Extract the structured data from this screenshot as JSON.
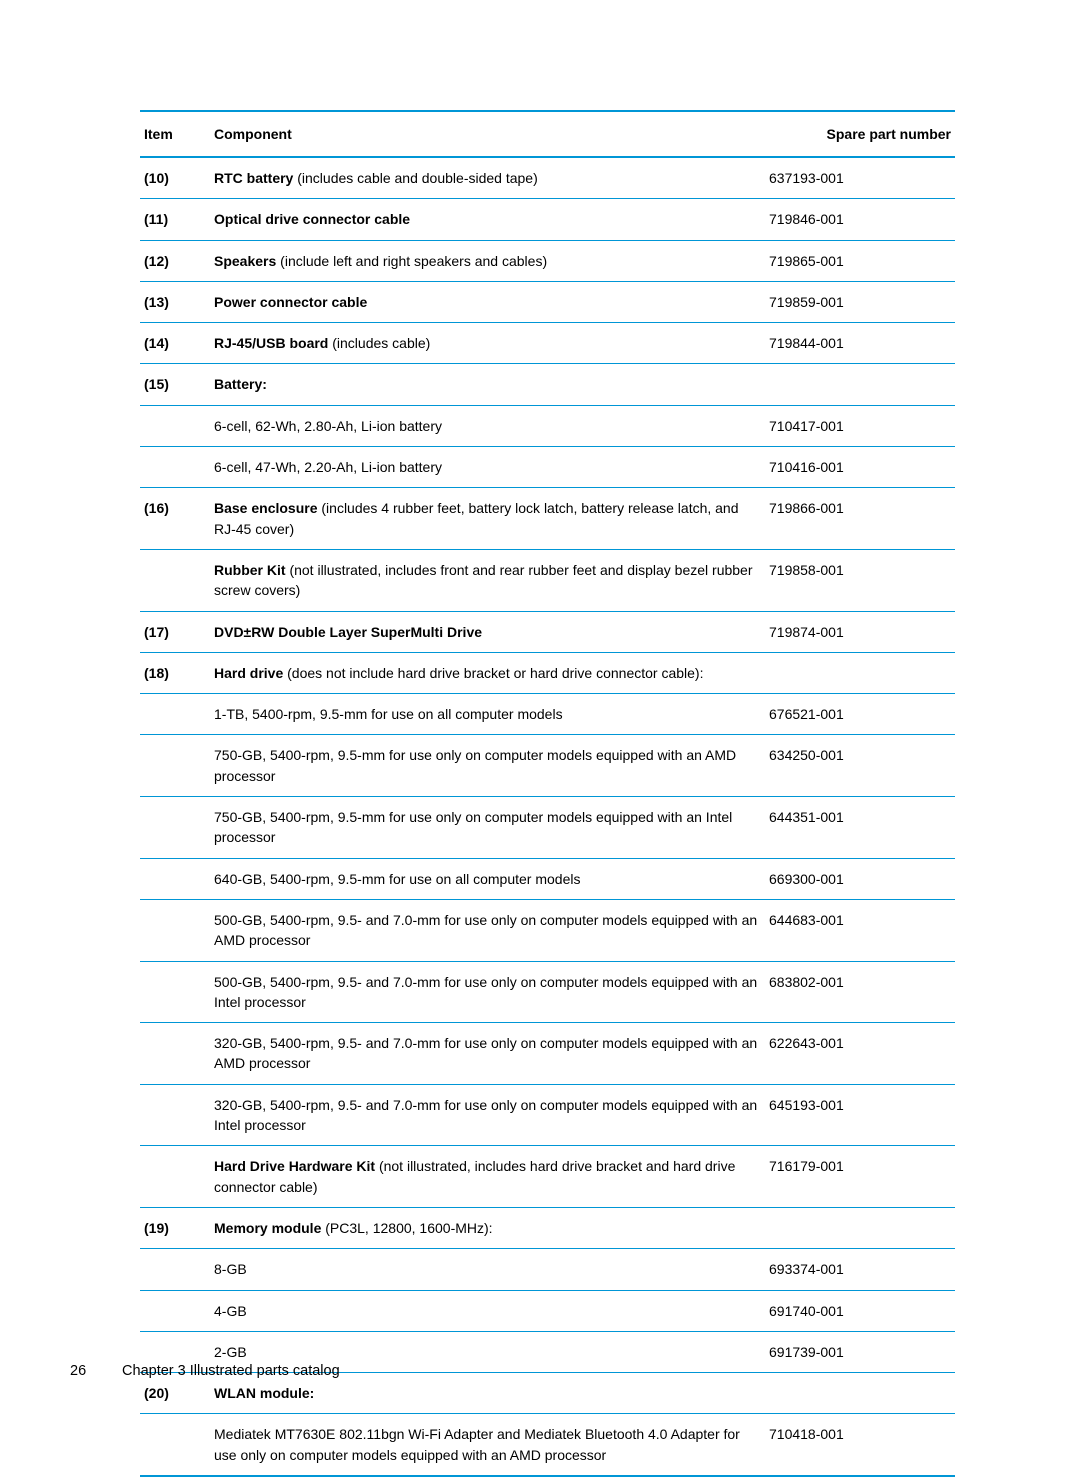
{
  "accent_color": "#0096d6",
  "text_color": "#000000",
  "background_color": "#ffffff",
  "font_family": "Arial, Helvetica, sans-serif",
  "base_font_size_pt": 10.5,
  "headers": {
    "item": "Item",
    "component": "Component",
    "spare_part": "Spare part number"
  },
  "rows": [
    {
      "item": "(10)",
      "bold": "RTC battery",
      "rest": " (includes cable and double-sided tape)",
      "part": "637193-001"
    },
    {
      "item": "(11)",
      "bold": "Optical drive connector cable",
      "rest": "",
      "part": "719846-001"
    },
    {
      "item": "(12)",
      "bold": "Speakers",
      "rest": " (include left and right speakers and cables)",
      "part": "719865-001"
    },
    {
      "item": "(13)",
      "bold": "Power connector cable",
      "rest": "",
      "part": "719859-001"
    },
    {
      "item": "(14)",
      "bold": "RJ-45/USB board",
      "rest": " (includes cable)",
      "part": "719844-001"
    },
    {
      "item": "(15)",
      "bold": "Battery:",
      "rest": "",
      "part": ""
    },
    {
      "item": "",
      "bold": "",
      "rest": "6-cell, 62-Wh, 2.80-Ah, Li-ion battery",
      "part": "710417-001"
    },
    {
      "item": "",
      "bold": "",
      "rest": "6-cell, 47-Wh, 2.20-Ah, Li-ion battery",
      "part": "710416-001"
    },
    {
      "item": "(16)",
      "bold": "Base enclosure",
      "rest": " (includes 4 rubber feet, battery lock latch, battery release latch, and RJ-45 cover)",
      "part": "719866-001"
    },
    {
      "item": "",
      "bold": "Rubber Kit",
      "rest": " (not illustrated, includes front and rear rubber feet and display bezel rubber screw covers)",
      "part": "719858-001"
    },
    {
      "item": "(17)",
      "bold": "DVD±RW Double Layer SuperMulti Drive",
      "rest": "",
      "part": "719874-001"
    },
    {
      "item": "(18)",
      "bold": "Hard drive",
      "rest": " (does not include hard drive bracket or hard drive connector cable):",
      "part": ""
    },
    {
      "item": "",
      "bold": "",
      "rest": "1-TB, 5400-rpm, 9.5-mm for use on all computer models",
      "part": "676521-001"
    },
    {
      "item": "",
      "bold": "",
      "rest": "750-GB, 5400-rpm, 9.5-mm for use only on computer models equipped with an AMD processor",
      "part": "634250-001"
    },
    {
      "item": "",
      "bold": "",
      "rest": "750-GB, 5400-rpm, 9.5-mm for use only on computer models equipped with an Intel processor",
      "part": "644351-001"
    },
    {
      "item": "",
      "bold": "",
      "rest": "640-GB, 5400-rpm, 9.5-mm for use on all computer models",
      "part": "669300-001"
    },
    {
      "item": "",
      "bold": "",
      "rest": "500-GB, 5400-rpm, 9.5- and 7.0-mm for use only on computer models equipped with an AMD processor",
      "part": "644683-001"
    },
    {
      "item": "",
      "bold": "",
      "rest": "500-GB, 5400-rpm, 9.5- and 7.0-mm for use only on computer models equipped with an Intel processor",
      "part": "683802-001"
    },
    {
      "item": "",
      "bold": "",
      "rest": "320-GB, 5400-rpm, 9.5- and 7.0-mm for use only on computer models equipped with an AMD processor",
      "part": "622643-001"
    },
    {
      "item": "",
      "bold": "",
      "rest": "320-GB, 5400-rpm, 9.5- and 7.0-mm for use only on computer models equipped with an Intel processor",
      "part": "645193-001"
    },
    {
      "item": "",
      "bold": "Hard Drive Hardware Kit",
      "rest": " (not illustrated, includes hard drive bracket and hard drive connector cable)",
      "part": "716179-001"
    },
    {
      "item": "(19)",
      "bold": "Memory module",
      "rest": " (PC3L, 12800, 1600-MHz):",
      "part": ""
    },
    {
      "item": "",
      "bold": "",
      "rest": "8-GB",
      "part": "693374-001"
    },
    {
      "item": "",
      "bold": "",
      "rest": "4-GB",
      "part": "691740-001"
    },
    {
      "item": "",
      "bold": "",
      "rest": "2-GB",
      "part": "691739-001"
    },
    {
      "item": "(20)",
      "bold": "WLAN module:",
      "rest": "",
      "part": ""
    },
    {
      "item": "",
      "bold": "",
      "rest": "Mediatek MT7630E 802.11bgn Wi-Fi Adapter and Mediatek Bluetooth 4.0 Adapter for use only on computer models equipped with an AMD processor",
      "part": "710418-001"
    }
  ],
  "footer": {
    "page_number": "26",
    "chapter": "Chapter 3   Illustrated parts catalog"
  }
}
